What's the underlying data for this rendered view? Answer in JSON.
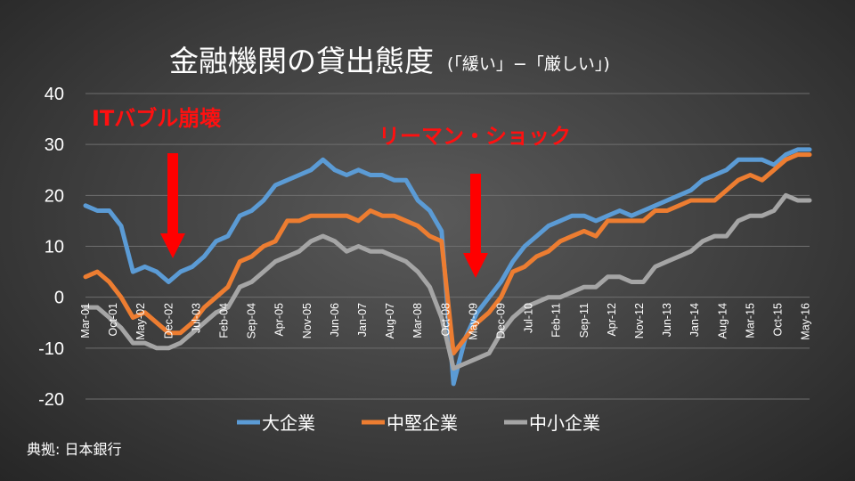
{
  "chart_data": {
    "type": "line",
    "title": "金融機関の貸出態度",
    "subtitle": "(「緩い」−「厳しい」)",
    "ylim": [
      -20,
      40
    ],
    "yticks": [
      -20,
      -10,
      0,
      10,
      20,
      30,
      40
    ],
    "grid": true,
    "legend_position": "bottom",
    "source": "典拠: 日本銀行",
    "x": [
      "Mar-01",
      "Jun-01",
      "Sep-01",
      "Dec-01",
      "Mar-02",
      "Jun-02",
      "Sep-02",
      "Dec-02",
      "Mar-03",
      "Jun-03",
      "Sep-03",
      "Dec-03",
      "Mar-04",
      "Jun-04",
      "Sep-04",
      "Dec-04",
      "Mar-05",
      "Jun-05",
      "Sep-05",
      "Dec-05",
      "Mar-06",
      "Jun-06",
      "Sep-06",
      "Dec-06",
      "Mar-07",
      "Jun-07",
      "Sep-07",
      "Dec-07",
      "Mar-08",
      "Jun-08",
      "Sep-08",
      "Dec-08",
      "Mar-09",
      "Jun-09",
      "Sep-09",
      "Dec-09",
      "Mar-10",
      "Jun-10",
      "Sep-10",
      "Dec-10",
      "Mar-11",
      "Jun-11",
      "Sep-11",
      "Dec-11",
      "Mar-12",
      "Jun-12",
      "Sep-12",
      "Dec-12",
      "Mar-13",
      "Jun-13",
      "Sep-13",
      "Dec-13",
      "Mar-14",
      "Jun-14",
      "Sep-14",
      "Dec-14",
      "Mar-15",
      "Jun-15",
      "Sep-15",
      "Dec-15",
      "Mar-16",
      "Jun-16"
    ],
    "xtick_labels": [
      "Mar-01",
      "Oct-01",
      "May-02",
      "Dec-02",
      "Jul-03",
      "Feb-04",
      "Sep-04",
      "Apr-05",
      "Nov-05",
      "Jun-06",
      "Jan-07",
      "Aug-07",
      "Mar-08",
      "Oct-08",
      "May-09",
      "Dec-09",
      "Jul-10",
      "Feb-11",
      "Sep-11",
      "Apr-12",
      "Nov-12",
      "Jun-13",
      "Jan-14",
      "Aug-14",
      "Mar-15",
      "Oct-15",
      "May-16"
    ],
    "series": [
      {
        "name": "大企業",
        "color": "#5b9bd5",
        "values": [
          18,
          17,
          17,
          14,
          5,
          6,
          5,
          3,
          5,
          6,
          8,
          11,
          12,
          16,
          17,
          19,
          22,
          23,
          24,
          25,
          27,
          25,
          24,
          25,
          24,
          24,
          23,
          23,
          19,
          17,
          13,
          -17,
          -8,
          -3,
          0,
          3,
          7,
          10,
          12,
          14,
          15,
          16,
          16,
          15,
          16,
          17,
          16,
          17,
          18,
          19,
          20,
          21,
          23,
          24,
          25,
          27,
          27,
          27,
          26,
          28,
          29,
          29
        ]
      },
      {
        "name": "中堅企業",
        "color": "#ed7d31",
        "values": [
          4,
          5,
          3,
          0,
          -4,
          -3,
          -5,
          -7,
          -7,
          -5,
          -2,
          0,
          2,
          7,
          8,
          10,
          11,
          15,
          15,
          16,
          16,
          16,
          16,
          15,
          17,
          16,
          16,
          15,
          14,
          12,
          11,
          -11,
          -8,
          -5,
          -3,
          0,
          5,
          6,
          8,
          9,
          11,
          12,
          13,
          12,
          15,
          15,
          15,
          15,
          17,
          17,
          18,
          19,
          19,
          19,
          21,
          23,
          24,
          23,
          25,
          27,
          28,
          28
        ]
      },
      {
        "name": "中小企業",
        "color": "#a5a5a5",
        "values": [
          -2,
          -2,
          -4,
          -6,
          -9,
          -9,
          -10,
          -10,
          -9,
          -7,
          -5,
          -3,
          -2,
          2,
          3,
          5,
          7,
          8,
          9,
          11,
          12,
          11,
          9,
          10,
          9,
          9,
          8,
          7,
          5,
          2,
          -4,
          -14,
          -13,
          -12,
          -11,
          -7,
          -4,
          -2,
          -1,
          0,
          0,
          1,
          2,
          2,
          4,
          4,
          3,
          3,
          6,
          7,
          8,
          9,
          11,
          12,
          12,
          15,
          16,
          16,
          17,
          20,
          19,
          19
        ]
      }
    ],
    "annotations": [
      {
        "text": "ITバブル崩壊",
        "at_x": "Dec-02"
      },
      {
        "text": "リーマン・ショック",
        "at_x": "Jun-09"
      }
    ]
  }
}
